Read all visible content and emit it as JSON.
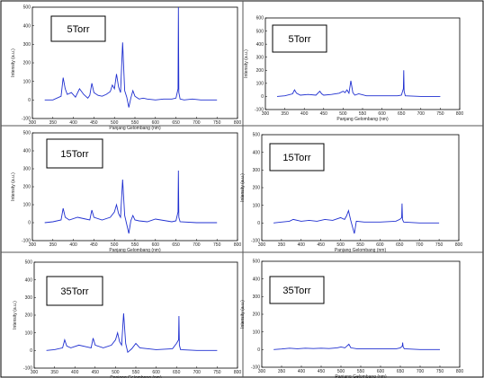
{
  "figure": {
    "panels": [
      {
        "id": "p1",
        "label": "5Torr"
      },
      {
        "id": "p2",
        "label": "5Torr"
      },
      {
        "id": "p3",
        "label": "15Torr"
      },
      {
        "id": "p4",
        "label": "15Torr"
      },
      {
        "id": "p5",
        "label": "35Torr"
      },
      {
        "id": "p6",
        "label": "35Torr"
      }
    ]
  },
  "colors": {
    "line": "#1f2fd0",
    "frame": "#000000",
    "divider": "#555555"
  },
  "chart_data": [
    {
      "type": "line",
      "panel": "p1",
      "title": "5Torr",
      "xlabel": "Panjang Gelombang (nm)",
      "ylabel": "Intensity (a.u.)",
      "xlim": [
        300,
        800
      ],
      "ylim": [
        -100,
        500
      ],
      "xticks": [
        300,
        350,
        400,
        450,
        500,
        550,
        600,
        650,
        700,
        750,
        800
      ],
      "yticks": [
        -100,
        0,
        100,
        200,
        300,
        400,
        500
      ],
      "series": [
        {
          "x": [
            330,
            350,
            370,
            375,
            380,
            385,
            395,
            405,
            415,
            425,
            435,
            440,
            445,
            450,
            460,
            470,
            480,
            490,
            495,
            500,
            505,
            510,
            515,
            520,
            525,
            530,
            535,
            540,
            545,
            550,
            560,
            570,
            580,
            600,
            620,
            640,
            650,
            655,
            656,
            657,
            660,
            670,
            690,
            710,
            730,
            750
          ],
          "y": [
            0,
            0,
            20,
            120,
            60,
            30,
            40,
            15,
            60,
            30,
            10,
            25,
            90,
            40,
            25,
            20,
            30,
            45,
            80,
            60,
            140,
            70,
            40,
            310,
            50,
            15,
            -40,
            10,
            50,
            20,
            5,
            10,
            5,
            0,
            5,
            5,
            10,
            60,
            500,
            40,
            5,
            0,
            5,
            0,
            0,
            0
          ]
        }
      ]
    },
    {
      "type": "line",
      "panel": "p2",
      "title": "5Torr",
      "xlabel": "Panjang Gelombang (nm)",
      "ylabel": "Intensity (a.u.)",
      "xlim": [
        300,
        800
      ],
      "ylim": [
        -100,
        600
      ],
      "xticks": [
        300,
        350,
        400,
        450,
        500,
        550,
        600,
        650,
        700,
        750,
        800
      ],
      "yticks": [
        -100,
        0,
        100,
        200,
        300,
        400,
        500,
        600
      ],
      "series": [
        {
          "x": [
            330,
            350,
            370,
            375,
            380,
            390,
            410,
            430,
            440,
            445,
            450,
            470,
            490,
            500,
            505,
            510,
            515,
            520,
            525,
            530,
            540,
            560,
            600,
            640,
            650,
            655,
            656,
            657,
            660,
            700,
            750
          ],
          "y": [
            0,
            5,
            20,
            50,
            25,
            10,
            15,
            10,
            40,
            20,
            10,
            15,
            25,
            40,
            30,
            50,
            25,
            120,
            30,
            10,
            20,
            5,
            5,
            5,
            10,
            60,
            200,
            40,
            5,
            0,
            0
          ]
        }
      ]
    },
    {
      "type": "line",
      "panel": "p3",
      "title": "15Torr",
      "xlabel": "Panjang Gelombang (nm)",
      "ylabel": "Intensity (a.u.)",
      "xlim": [
        300,
        800
      ],
      "ylim": [
        -100,
        500
      ],
      "xticks": [
        300,
        350,
        400,
        450,
        500,
        550,
        600,
        650,
        700,
        750,
        800
      ],
      "yticks": [
        -100,
        0,
        100,
        200,
        300,
        400,
        500
      ],
      "series": [
        {
          "x": [
            330,
            350,
            370,
            375,
            380,
            390,
            410,
            430,
            440,
            445,
            450,
            470,
            490,
            500,
            505,
            510,
            515,
            520,
            525,
            530,
            535,
            540,
            545,
            550,
            560,
            580,
            600,
            640,
            650,
            655,
            656,
            657,
            660,
            700,
            750
          ],
          "y": [
            0,
            5,
            15,
            80,
            30,
            15,
            30,
            20,
            15,
            70,
            30,
            15,
            30,
            60,
            100,
            50,
            30,
            240,
            40,
            -10,
            -60,
            10,
            40,
            15,
            10,
            5,
            20,
            5,
            10,
            60,
            290,
            30,
            5,
            0,
            0
          ]
        }
      ]
    },
    {
      "type": "line",
      "panel": "p4",
      "title": "15Torr",
      "xlabel": "Panjang Gelombang (nm)",
      "ylabel": "Intensity (a.u.)",
      "xlim": [
        300,
        800
      ],
      "ylim": [
        -100,
        500
      ],
      "xticks": [
        300,
        350,
        400,
        450,
        500,
        550,
        600,
        650,
        700,
        750,
        800
      ],
      "yticks": [
        -100,
        0,
        100,
        200,
        300,
        400,
        500
      ],
      "series": [
        {
          "x": [
            330,
            350,
            370,
            380,
            400,
            420,
            440,
            460,
            480,
            500,
            510,
            515,
            520,
            525,
            530,
            535,
            540,
            560,
            600,
            640,
            650,
            655,
            656,
            657,
            660,
            700,
            750
          ],
          "y": [
            0,
            5,
            10,
            20,
            10,
            15,
            10,
            20,
            15,
            30,
            20,
            40,
            70,
            20,
            -20,
            -60,
            10,
            5,
            5,
            10,
            20,
            30,
            110,
            20,
            5,
            0,
            0
          ]
        }
      ]
    },
    {
      "type": "line",
      "panel": "p5",
      "title": "35Torr",
      "xlabel": "Panjang Gelombang (nm)",
      "ylabel": "Intensity (a.u.)",
      "xlim": [
        300,
        800
      ],
      "ylim": [
        -100,
        500
      ],
      "xticks": [
        300,
        350,
        400,
        450,
        500,
        550,
        600,
        650,
        700,
        750,
        800
      ],
      "yticks": [
        -100,
        0,
        100,
        200,
        300,
        400,
        500
      ],
      "series": [
        {
          "x": [
            330,
            350,
            370,
            375,
            380,
            390,
            410,
            430,
            440,
            445,
            450,
            470,
            490,
            500,
            505,
            510,
            515,
            520,
            525,
            530,
            540,
            550,
            560,
            600,
            640,
            650,
            655,
            656,
            657,
            660,
            700,
            750
          ],
          "y": [
            0,
            5,
            15,
            60,
            25,
            15,
            30,
            20,
            15,
            70,
            30,
            15,
            30,
            60,
            100,
            50,
            30,
            210,
            40,
            -10,
            10,
            40,
            15,
            5,
            10,
            40,
            60,
            195,
            30,
            5,
            0,
            0
          ]
        }
      ]
    },
    {
      "type": "line",
      "panel": "p6",
      "title": "35Torr",
      "xlabel": "Panjang Gelombang (nm)",
      "ylabel": "Intensity (a.u.)",
      "xlim": [
        300,
        800
      ],
      "ylim": [
        -100,
        500
      ],
      "xticks": [
        300,
        350,
        400,
        450,
        500,
        550,
        600,
        650,
        700,
        750,
        800
      ],
      "yticks": [
        -100,
        0,
        100,
        200,
        300,
        400,
        500
      ],
      "series": [
        {
          "x": [
            330,
            350,
            370,
            390,
            410,
            430,
            450,
            470,
            490,
            500,
            510,
            515,
            520,
            525,
            540,
            580,
            620,
            640,
            650,
            655,
            656,
            657,
            660,
            700,
            750
          ],
          "y": [
            0,
            3,
            8,
            5,
            8,
            6,
            8,
            6,
            10,
            15,
            10,
            20,
            30,
            10,
            5,
            5,
            5,
            5,
            10,
            20,
            40,
            15,
            5,
            0,
            0
          ]
        }
      ]
    }
  ]
}
